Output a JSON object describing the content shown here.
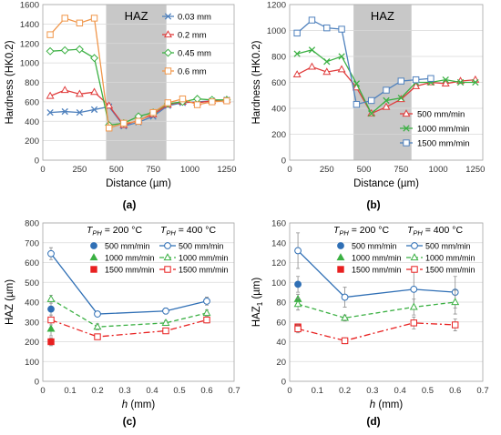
{
  "panels": [
    {
      "label": "(a)"
    },
    {
      "label": "(b)"
    },
    {
      "label": "(c)"
    },
    {
      "label": "(d)"
    }
  ],
  "chart_data": [
    {
      "type": "line",
      "panel_label": "(a)",
      "xlabel": "Distance (µm)",
      "ylabel": "Hardness (HK0.2)",
      "xlim": [
        0,
        1300
      ],
      "ylim": [
        0,
        1600
      ],
      "xticks": [
        0,
        250,
        500,
        750,
        1000,
        1250
      ],
      "yticks": [
        0,
        200,
        400,
        600,
        800,
        1000,
        1200,
        1400,
        1600
      ],
      "region": {
        "label": "HAZ",
        "x0": 430,
        "x1": 840,
        "color": "#c8c8c8"
      },
      "legend_position": "top-right",
      "series": [
        {
          "name": "0.03 mm",
          "color": "#4f81bd",
          "marker": "x",
          "x": [
            50,
            150,
            250,
            350,
            450,
            550,
            650,
            750,
            850,
            950,
            1050,
            1150,
            1250
          ],
          "values": [
            490,
            500,
            490,
            520,
            550,
            350,
            390,
            450,
            560,
            590,
            600,
            610,
            620
          ]
        },
        {
          "name": "0.2 mm",
          "color": "#e03c3c",
          "marker": "triangle",
          "x": [
            50,
            150,
            250,
            350,
            450,
            550,
            650,
            750,
            850,
            950,
            1050,
            1150,
            1250
          ],
          "values": [
            660,
            720,
            680,
            700,
            560,
            360,
            410,
            470,
            570,
            600,
            590,
            610,
            620
          ]
        },
        {
          "name": "0.45 mm",
          "color": "#3bb043",
          "marker": "diamond",
          "x": [
            50,
            150,
            250,
            350,
            450,
            550,
            650,
            750,
            850,
            950,
            1050,
            1150,
            1250
          ],
          "values": [
            1120,
            1130,
            1140,
            1050,
            360,
            380,
            450,
            490,
            580,
            600,
            630,
            620,
            620
          ]
        },
        {
          "name": "0.6 mm",
          "color": "#f0964a",
          "marker": "square",
          "x": [
            50,
            150,
            250,
            350,
            450,
            550,
            650,
            750,
            850,
            950,
            1050,
            1150,
            1250
          ],
          "values": [
            1290,
            1460,
            1410,
            1460,
            330,
            380,
            400,
            490,
            590,
            630,
            570,
            600,
            610
          ]
        }
      ]
    },
    {
      "type": "line",
      "panel_label": "(b)",
      "xlabel": "Distance (µm)",
      "ylabel": "Hardness (HK0.2)",
      "xlim": [
        0,
        1300
      ],
      "ylim": [
        0,
        1200
      ],
      "xticks": [
        0,
        250,
        500,
        750,
        1000,
        1250
      ],
      "yticks": [
        0,
        200,
        400,
        600,
        800,
        1000,
        1200
      ],
      "region": {
        "label": "HAZ",
        "x0": 430,
        "x1": 820,
        "color": "#c8c8c8"
      },
      "legend_position": "bottom-right",
      "series": [
        {
          "name": "500 mm/min",
          "color": "#e03c3c",
          "marker": "triangle",
          "x": [
            50,
            150,
            250,
            350,
            450,
            550,
            650,
            750,
            850,
            950,
            1050,
            1150,
            1250
          ],
          "values": [
            660,
            720,
            680,
            700,
            560,
            360,
            410,
            470,
            570,
            600,
            590,
            610,
            620
          ]
        },
        {
          "name": "1000 mm/min",
          "color": "#3bb043",
          "marker": "x",
          "x": [
            50,
            150,
            250,
            350,
            450,
            550,
            650,
            750,
            850,
            950,
            1050,
            1150,
            1250
          ],
          "values": [
            820,
            850,
            760,
            800,
            590,
            360,
            460,
            480,
            600,
            600,
            620,
            600,
            600
          ]
        },
        {
          "name": "1500 mm/min",
          "color": "#4f81bd",
          "marker": "square",
          "x": [
            50,
            150,
            250,
            350,
            450,
            550,
            650,
            750,
            850,
            950
          ],
          "values": [
            980,
            1080,
            1020,
            1010,
            430,
            460,
            540,
            610,
            620,
            630
          ]
        }
      ]
    },
    {
      "type": "line",
      "panel_label": "(c)",
      "xlabel": "h (mm)",
      "ylabel": "HAZ (µm)",
      "xlim": [
        0,
        0.7
      ],
      "ylim": [
        0,
        800
      ],
      "xticks": [
        0,
        0.1,
        0.2,
        0.3,
        0.4,
        0.5,
        0.6,
        0.7
      ],
      "yticks": [
        0,
        100,
        200,
        300,
        400,
        500,
        600,
        700,
        800
      ],
      "legend_headers": [
        "TPH = 200 °C",
        "TPH = 400 °C"
      ],
      "legend_position": "top-right",
      "series": [
        {
          "name": "500 mm/min",
          "group": "200",
          "color": "#2f6fb5",
          "marker": "circle",
          "filled": true,
          "line": "none",
          "x": [
            0.03
          ],
          "values": [
            365
          ],
          "err": [
            45
          ]
        },
        {
          "name": "1000 mm/min",
          "group": "200",
          "color": "#3bb043",
          "marker": "triangle",
          "filled": true,
          "line": "none",
          "x": [
            0.03
          ],
          "values": [
            265
          ],
          "err": [
            35
          ]
        },
        {
          "name": "1500 mm/min",
          "group": "200",
          "color": "#e82020",
          "marker": "square",
          "filled": true,
          "line": "none",
          "x": [
            0.03
          ],
          "values": [
            200
          ],
          "err": [
            20
          ]
        },
        {
          "name": "500 mm/min",
          "group": "400",
          "color": "#2f6fb5",
          "marker": "circle",
          "filled": false,
          "line": "solid",
          "x": [
            0.03,
            0.2,
            0.45,
            0.6
          ],
          "values": [
            645,
            340,
            355,
            405
          ],
          "err": [
            30,
            12,
            15,
            20
          ]
        },
        {
          "name": "1000 mm/min",
          "group": "400",
          "color": "#3bb043",
          "marker": "triangle",
          "filled": false,
          "line": "dashed",
          "x": [
            0.03,
            0.2,
            0.45,
            0.6
          ],
          "values": [
            415,
            275,
            295,
            345
          ],
          "err": [
            20,
            15,
            12,
            15
          ]
        },
        {
          "name": "1500 mm/min",
          "group": "400",
          "color": "#e82020",
          "marker": "square",
          "filled": false,
          "line": "dashdot",
          "x": [
            0.03,
            0.2,
            0.45,
            0.6
          ],
          "values": [
            310,
            225,
            255,
            310
          ],
          "err": [
            25,
            10,
            12,
            15
          ]
        }
      ]
    },
    {
      "type": "line",
      "panel_label": "(d)",
      "xlabel": "h (mm)",
      "ylabel": "HAZ1 (µm)",
      "xlim": [
        0,
        0.7
      ],
      "ylim": [
        0,
        160
      ],
      "xticks": [
        0,
        0.1,
        0.2,
        0.3,
        0.4,
        0.5,
        0.6,
        0.7
      ],
      "yticks": [
        0,
        20,
        40,
        60,
        80,
        100,
        120,
        140,
        160
      ],
      "legend_headers": [
        "TPH = 200 °C",
        "TPH = 400 °C"
      ],
      "legend_position": "top-right",
      "series": [
        {
          "name": "500 mm/min",
          "group": "200",
          "color": "#2f6fb5",
          "marker": "circle",
          "filled": true,
          "line": "none",
          "x": [
            0.03
          ],
          "values": [
            98
          ],
          "err": [
            8
          ]
        },
        {
          "name": "1000 mm/min",
          "group": "200",
          "color": "#3bb043",
          "marker": "triangle",
          "filled": true,
          "line": "none",
          "x": [
            0.03
          ],
          "values": [
            83
          ],
          "err": [
            5
          ]
        },
        {
          "name": "1500 mm/min",
          "group": "200",
          "color": "#e82020",
          "marker": "square",
          "filled": true,
          "line": "none",
          "x": [
            0.03
          ],
          "values": [
            55
          ],
          "err": [
            3
          ]
        },
        {
          "name": "500 mm/min",
          "group": "400",
          "color": "#2f6fb5",
          "marker": "circle",
          "filled": false,
          "line": "solid",
          "x": [
            0.03,
            0.2,
            0.45,
            0.6
          ],
          "values": [
            132,
            85,
            93,
            90
          ],
          "err": [
            18,
            10,
            18,
            16
          ]
        },
        {
          "name": "1000 mm/min",
          "group": "400",
          "color": "#3bb043",
          "marker": "triangle",
          "filled": false,
          "line": "dashed",
          "x": [
            0.03,
            0.2,
            0.45,
            0.6
          ],
          "values": [
            78,
            64,
            75,
            80
          ],
          "err": [
            6,
            3,
            8,
            12
          ]
        },
        {
          "name": "1500 mm/min",
          "group": "400",
          "color": "#e82020",
          "marker": "square",
          "filled": false,
          "line": "dashdot",
          "x": [
            0.03,
            0.2,
            0.45,
            0.6
          ],
          "values": [
            53,
            41,
            59,
            57
          ],
          "err": [
            4,
            3,
            6,
            6
          ]
        }
      ]
    }
  ]
}
